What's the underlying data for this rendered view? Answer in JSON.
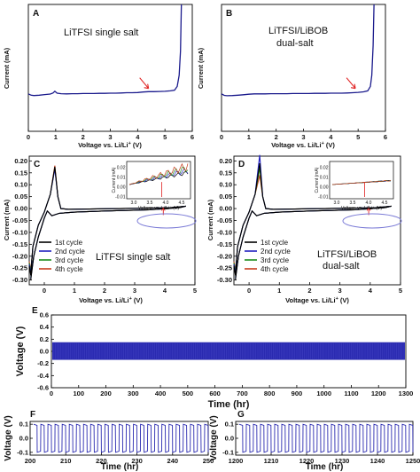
{
  "chart_data": [
    {
      "panel": "A",
      "type": "line",
      "annotation": "LiTFSI single salt",
      "xlabel": "Voltage vs. Li/Li",
      "xlabel_sup": "+",
      "xlabel_unit": " (V)",
      "ylabel": "Current (mA)",
      "xlim": [
        0,
        6
      ],
      "xticks": [
        0,
        1,
        2,
        3,
        4,
        5,
        6
      ],
      "series": [
        {
          "color": "#1a1a8c",
          "x": [
            0.0,
            0.1,
            0.2,
            0.4,
            0.6,
            0.8,
            0.9,
            0.97,
            1.05,
            1.2,
            1.4,
            1.6,
            1.8,
            2.0,
            2.2,
            2.4,
            2.6,
            2.8,
            3.0,
            3.2,
            3.4,
            3.6,
            3.8,
            4.0,
            4.2,
            4.4,
            4.6,
            4.8,
            5.0,
            5.2,
            5.35,
            5.45,
            5.52,
            5.57,
            5.6
          ],
          "y": [
            0.02,
            0.013,
            0.011,
            0.013,
            0.016,
            0.019,
            0.025,
            0.034,
            0.024,
            0.021,
            0.02,
            0.021,
            0.021,
            0.022,
            0.022,
            0.022,
            0.023,
            0.023,
            0.024,
            0.024,
            0.025,
            0.026,
            0.026,
            0.027,
            0.03,
            0.032,
            0.032,
            0.033,
            0.034,
            0.036,
            0.04,
            0.06,
            0.12,
            0.25,
            0.5
          ]
        }
      ],
      "arrow_at": 4.4
    },
    {
      "panel": "B",
      "type": "line",
      "annotation_lines": [
        "LiTFSI/LiBOB",
        "dual-salt"
      ],
      "xlabel": "Voltage vs. Li/Li",
      "xlabel_sup": "+",
      "xlabel_unit": " (V)",
      "ylabel": "Current (mA)",
      "xlim": [
        0,
        6
      ],
      "xticks": [
        0,
        1,
        2,
        3,
        4,
        5,
        6
      ],
      "series": [
        {
          "color": "#1a1a8c",
          "x": [
            0.0,
            0.1,
            0.2,
            0.4,
            0.6,
            0.8,
            1.0,
            1.2,
            1.4,
            1.6,
            1.8,
            2.0,
            2.2,
            2.4,
            2.6,
            2.8,
            3.0,
            3.2,
            3.4,
            3.6,
            3.8,
            4.0,
            4.2,
            4.4,
            4.6,
            4.8,
            5.0,
            5.2,
            5.35,
            5.45,
            5.5,
            5.55,
            5.58
          ],
          "y": [
            0.02,
            0.012,
            0.01,
            0.011,
            0.013,
            0.015,
            0.018,
            0.02,
            0.02,
            0.02,
            0.021,
            0.021,
            0.021,
            0.021,
            0.022,
            0.022,
            0.022,
            0.022,
            0.023,
            0.023,
            0.023,
            0.024,
            0.024,
            0.024,
            0.025,
            0.026,
            0.028,
            0.031,
            0.036,
            0.06,
            0.12,
            0.28,
            0.5
          ]
        }
      ],
      "arrow_at": 4.9
    },
    {
      "panel": "C",
      "type": "line",
      "annotation": "LiTFSI  single salt",
      "xlabel": "Voltage vs. Li/Li",
      "xlabel_sup": "+",
      "xlabel_unit": " (V)",
      "ylabel": "Current (mA)",
      "xlim": [
        -0.5,
        5
      ],
      "ylim": [
        -0.32,
        0.22
      ],
      "xticks": [
        0,
        1,
        2,
        3,
        4,
        5
      ],
      "yticks": [
        "0.20",
        "0.15",
        "0.10",
        "0.05",
        "0.00",
        "-0.05",
        "-0.10",
        "-0.15",
        "-0.20",
        "-0.25",
        "-0.30"
      ],
      "legend": [
        "1st cycle",
        "2nd cycle",
        "3rd cycle",
        "4th cycle"
      ],
      "colors": [
        "#000000",
        "#2020c0",
        "#1c8c1c",
        "#c83c1c"
      ],
      "peak_values": [
        0.175,
        0.165,
        0.17,
        0.18
      ],
      "inset": {
        "ylabel": "Current (mA)",
        "xlabel": "Voltage vs. Li/Li+ (V)",
        "xticks": [
          "3.0",
          "3.5",
          "4.0",
          "4.5"
        ],
        "yticks": [
          "0.02",
          "0.01",
          "0.00",
          "-0.01"
        ]
      }
    },
    {
      "panel": "D",
      "type": "line",
      "annotation_lines": [
        "LiTFSI/LiBOB",
        "dual-salt"
      ],
      "xlabel": "Voltage vs. Li/Li",
      "xlabel_sup": "+",
      "xlabel_unit": " (V)",
      "ylabel": "Current (mA)",
      "xlim": [
        -0.5,
        5
      ],
      "ylim": [
        -0.32,
        0.22
      ],
      "xticks": [
        0,
        1,
        2,
        3,
        4,
        5
      ],
      "yticks": [
        "0.20",
        "0.15",
        "0.10",
        "0.05",
        "0.00",
        "-0.05",
        "-0.10",
        "-0.15",
        "-0.20",
        "-0.25",
        "-0.30"
      ],
      "legend": [
        "1st cycle",
        "2nd cycle",
        "3rd cycle",
        "4th cycle"
      ],
      "colors": [
        "#000000",
        "#2020c0",
        "#1c8c1c",
        "#c83c1c"
      ],
      "peak_values": [
        0.19,
        0.225,
        0.17,
        0.14
      ],
      "inset": {
        "ylabel": "Current (mA)",
        "xlabel": "Voltage vs. Li/Li+ (V)",
        "xticks": [
          "3.0",
          "3.5",
          "4.0",
          "4.5"
        ],
        "yticks": [
          "0.02",
          "0.01",
          "0.00",
          "-0.01"
        ]
      }
    },
    {
      "panel": "E",
      "type": "line",
      "xlabel": "Time (hr)",
      "ylabel": "Voltage (V)",
      "xlim": [
        0,
        1300
      ],
      "ylim": [
        -0.6,
        0.6
      ],
      "xticks": [
        0,
        100,
        200,
        300,
        400,
        500,
        600,
        700,
        800,
        900,
        1000,
        1100,
        1200,
        1300
      ],
      "yticks": [
        "0.6",
        "0.4",
        "0.2",
        "0.0",
        "-0.2",
        "-0.4",
        "-0.6"
      ],
      "band": [
        -0.14,
        0.15
      ],
      "color": "#2a2ab0"
    },
    {
      "panel": "F",
      "type": "line",
      "xlabel": "Time (hr)",
      "ylabel": "Voltage (V)",
      "xlim": [
        200,
        250
      ],
      "ylim": [
        -0.12,
        0.12
      ],
      "xticks": [
        200,
        210,
        220,
        230,
        240,
        250
      ],
      "yticks": [
        "0.1",
        "0.0",
        "-0.1"
      ],
      "period_hr": 2,
      "amplitude": 0.1,
      "color": "#2a2ab0"
    },
    {
      "panel": "G",
      "type": "line",
      "xlabel": "Time (hr)",
      "ylabel": "Voltage (V)",
      "xlim": [
        1200,
        1250
      ],
      "ylim": [
        -0.12,
        0.12
      ],
      "xticks": [
        1200,
        1210,
        1220,
        1230,
        1240,
        1250
      ],
      "yticks": [
        "0.1",
        "0.0",
        "-0.1"
      ],
      "period_hr": 2,
      "amplitude": 0.1,
      "color": "#2a2ab0"
    }
  ]
}
